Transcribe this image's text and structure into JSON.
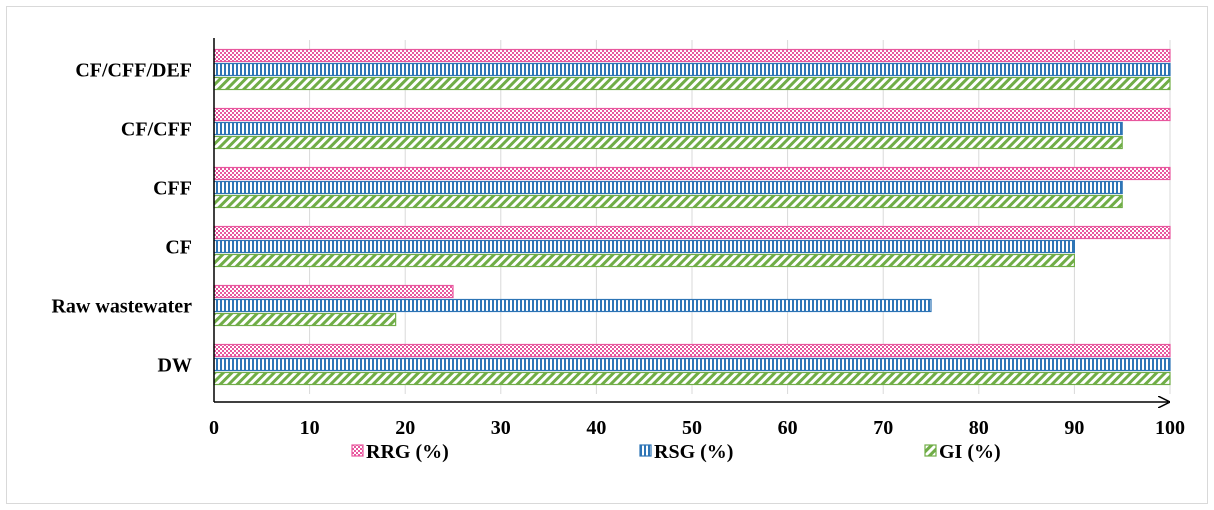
{
  "chart_data": {
    "type": "bar",
    "orientation": "horizontal",
    "categories": [
      "CF/CFF/DEF",
      "CF/CFF",
      "CFF",
      "CF",
      "Raw wastewater",
      "DW"
    ],
    "series": [
      {
        "name": "RRG (%)",
        "values": [
          100,
          100,
          100,
          100,
          25,
          100
        ],
        "color": "#e8579e",
        "pattern": "checker"
      },
      {
        "name": "RSG (%)",
        "values": [
          100,
          95,
          95,
          90,
          75,
          100
        ],
        "color": "#2e75b6",
        "pattern": "vertical-lines"
      },
      {
        "name": "GI (%)",
        "values": [
          100,
          95,
          95,
          90,
          19,
          100
        ],
        "color": "#70ad47",
        "pattern": "diagonal-lines"
      }
    ],
    "x_ticks": [
      "0",
      "10",
      "20",
      "30",
      "40",
      "50",
      "60",
      "70",
      "80",
      "90",
      "100"
    ],
    "xlim": [
      0,
      100
    ],
    "grid": true,
    "legend_position": "bottom",
    "title": "",
    "xlabel": "",
    "ylabel": ""
  }
}
